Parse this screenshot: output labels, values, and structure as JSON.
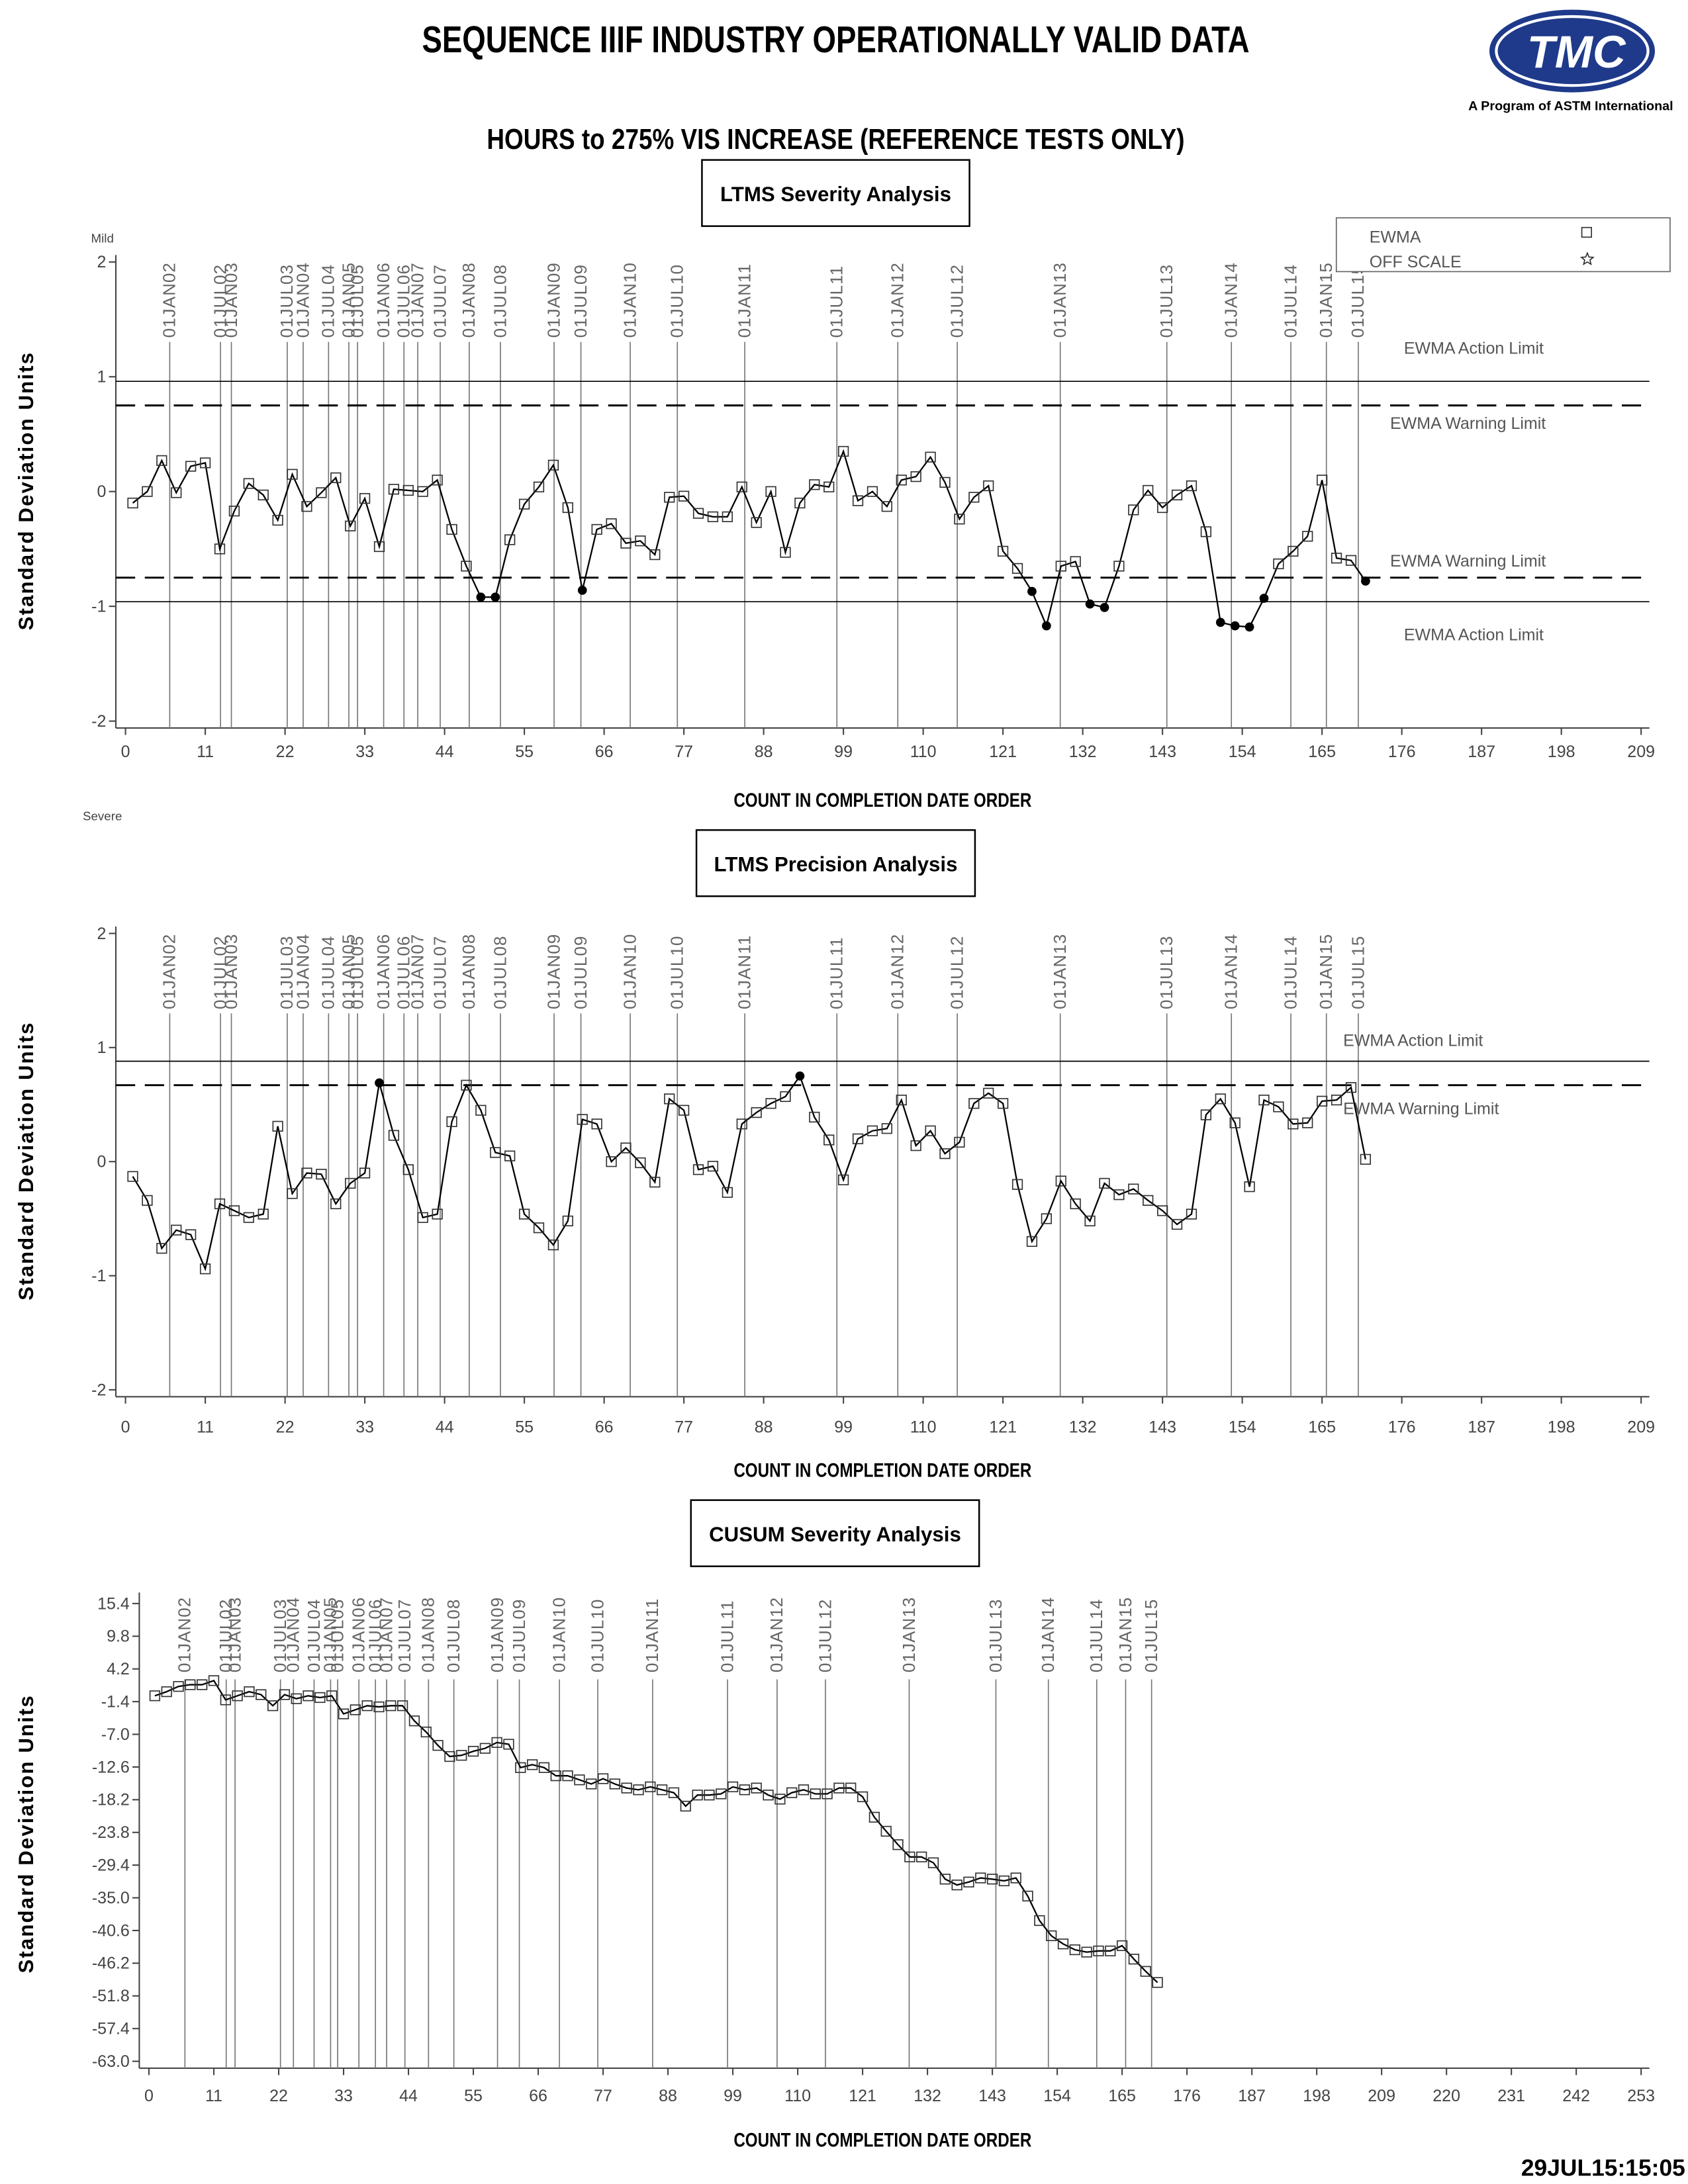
{
  "header": {
    "title": "SEQUENCE IIIF INDUSTRY OPERATIONALLY VALID DATA",
    "subtitle": "HOURS to 275% VIS INCREASE (REFERENCE TESTS ONLY)",
    "logo_text": "TMC",
    "logo_caption": "A Program of ASTM International",
    "timestamp": "29JUL15:15:05"
  },
  "date_markers": {
    "labels": [
      "01JAN02",
      "01JUL02",
      "01JAN03",
      "01JUL03",
      "01JAN04",
      "01JUL04",
      "01JAN05",
      "01JUL05",
      "01JAN06",
      "01JUL06",
      "01JAN07",
      "01JUL07",
      "01JAN08",
      "01JUL08",
      "01JAN09",
      "01JUL09",
      "01JAN10",
      "01JUL10",
      "01JAN11",
      "01JUL11",
      "01JAN12",
      "01JUL12",
      "01JAN13",
      "01JUL13",
      "01JAN14",
      "01JUL14",
      "01JAN15",
      "01JUL15"
    ],
    "x": [
      6.1,
      13.1,
      14.6,
      22.3,
      24.5,
      28,
      30.8,
      32,
      35.6,
      38.4,
      40.3,
      43.4,
      47.4,
      51.7,
      59.1,
      62.8,
      69.6,
      76.1,
      85.4,
      98.1,
      106.5,
      114.7,
      128.9,
      143.6,
      152.5,
      160.7,
      165.6,
      170
    ]
  },
  "chart_data": [
    {
      "type": "line",
      "title": "LTMS Severity Analysis",
      "x_label": "COUNT IN COMPLETION DATE ORDER",
      "y_label": "Standard Deviation Units",
      "annotations": [
        "Mild",
        "Severe"
      ],
      "legend": {
        "position": "upper right",
        "off_scale_label": "OFF SCALE"
      },
      "x": [
        1,
        3,
        5,
        7,
        9,
        11,
        13,
        15,
        17,
        19,
        21,
        23,
        25,
        27,
        29,
        31,
        33,
        35,
        37,
        39,
        41,
        43,
        45,
        47,
        49,
        51,
        53,
        55,
        57,
        59,
        61,
        63,
        65,
        67,
        69,
        71,
        73,
        75,
        77,
        79,
        81,
        83,
        85,
        87,
        89,
        91,
        93,
        95,
        97,
        99,
        101,
        103,
        105,
        107,
        109,
        111,
        113,
        115,
        117,
        119,
        121,
        123,
        125,
        127,
        129,
        131,
        133,
        135,
        137,
        139,
        141,
        143,
        145,
        147,
        149,
        151,
        153,
        155,
        157,
        159,
        161,
        163,
        165,
        167,
        169,
        171
      ],
      "series": [
        {
          "name": "EWMA",
          "color": "#000000",
          "values": [
            -0.1,
            0.0,
            0.27,
            -0.01,
            0.22,
            0.25,
            -0.5,
            -0.17,
            0.07,
            -0.03,
            -0.25,
            0.15,
            -0.13,
            -0.01,
            0.12,
            -0.3,
            -0.06,
            -0.48,
            0.02,
            0.01,
            0,
            0.1,
            -0.33,
            -0.65,
            -0.92,
            -0.92,
            -0.42,
            -0.11,
            0.04,
            0.23,
            -0.14,
            -0.86,
            -0.33,
            -0.28,
            -0.45,
            -0.43,
            -0.55,
            -0.05,
            -0.04,
            -0.19,
            -0.22,
            -0.22,
            0.04,
            -0.27,
            0,
            -0.53,
            -0.1,
            0.06,
            0.04,
            0.35,
            -0.08,
            0,
            -0.13,
            0.1,
            0.13,
            0.3,
            0.08,
            -0.24,
            -0.05,
            0.05,
            -0.52,
            -0.67,
            -0.87,
            -1.17,
            -0.65,
            -0.61,
            -0.98,
            -1.01,
            -0.65,
            -0.16,
            0.01,
            -0.14,
            -0.03,
            0.05,
            -0.35,
            -1.14,
            -1.17,
            -1.18,
            -0.93,
            -0.63,
            -0.52,
            -0.39,
            0.1,
            -0.58,
            -0.6,
            -0.78
          ]
        }
      ],
      "limits": [
        {
          "name": "EWMA Action Limit",
          "value": 0.96,
          "style": "solid"
        },
        {
          "name": "EWMA Warning Limit",
          "value": 0.75,
          "style": "dashed"
        },
        {
          "name": "EWMA Warning Limit",
          "value": -0.75,
          "style": "dashed"
        },
        {
          "name": "EWMA Action Limit",
          "value": -0.96,
          "style": "solid"
        }
      ],
      "xlim": [
        0,
        209
      ],
      "xticks": [
        0,
        11,
        22,
        33,
        44,
        55,
        66,
        77,
        88,
        99,
        110,
        121,
        132,
        143,
        154,
        165,
        176,
        187,
        198,
        209
      ],
      "ylim": [
        -2,
        2
      ],
      "yticks": [
        2,
        1,
        0,
        -1,
        -2
      ]
    },
    {
      "type": "line",
      "title": "LTMS Precision Analysis",
      "x_label": "COUNT IN COMPLETION DATE ORDER",
      "y_label": "Standard Deviation Units",
      "x": [
        1,
        3,
        5,
        7,
        9,
        11,
        13,
        15,
        17,
        19,
        21,
        23,
        25,
        27,
        29,
        31,
        33,
        35,
        37,
        39,
        41,
        43,
        45,
        47,
        49,
        51,
        53,
        55,
        57,
        59,
        61,
        63,
        65,
        67,
        69,
        71,
        73,
        75,
        77,
        79,
        81,
        83,
        85,
        87,
        89,
        91,
        93,
        95,
        97,
        99,
        101,
        103,
        105,
        107,
        109,
        111,
        113,
        115,
        117,
        119,
        121,
        123,
        125,
        127,
        129,
        131,
        133,
        135,
        137,
        139,
        141,
        143,
        145,
        147,
        149,
        151,
        153,
        155,
        157,
        159,
        161,
        163,
        165,
        167,
        169,
        171
      ],
      "series": [
        {
          "color": "#000000",
          "values": [
            -0.13,
            -0.34,
            -0.76,
            -0.6,
            -0.64,
            -0.94,
            -0.37,
            -0.43,
            -0.49,
            -0.46,
            0.31,
            -0.28,
            -0.1,
            -0.11,
            -0.37,
            -0.19,
            -0.1,
            0.69,
            0.23,
            -0.07,
            -0.49,
            -0.46,
            0.35,
            0.67,
            0.45,
            0.08,
            0.05,
            -0.46,
            -0.58,
            -0.73,
            -0.52,
            0.37,
            0.33,
            0,
            0.12,
            -0.01,
            -0.18,
            0.55,
            0.45,
            -0.07,
            -0.04,
            -0.27,
            0.33,
            0.43,
            0.51,
            0.57,
            0.75,
            0.39,
            0.19,
            -0.16,
            0.2,
            0.27,
            0.29,
            0.54,
            0.14,
            0.27,
            0.07,
            0.17,
            0.51,
            0.6,
            0.51,
            -0.2,
            -0.7,
            -0.5,
            -0.17,
            -0.37,
            -0.52,
            -0.19,
            -0.29,
            -0.24,
            -0.34,
            -0.43,
            -0.55,
            -0.46,
            0.41,
            0.55,
            0.34,
            -0.22,
            0.54,
            0.48,
            0.33,
            0.34,
            0.53,
            0.54,
            0.65,
            0.02
          ]
        }
      ],
      "limits": [
        {
          "name": "EWMA Action Limit",
          "value": 0.88,
          "style": "solid"
        },
        {
          "name": "EWMA Warning Limit",
          "value": 0.67,
          "style": "dashed"
        }
      ],
      "xlim": [
        0,
        209
      ],
      "xticks": [
        0,
        11,
        22,
        33,
        44,
        55,
        66,
        77,
        88,
        99,
        110,
        121,
        132,
        143,
        154,
        165,
        176,
        187,
        198,
        209
      ],
      "ylim": [
        -2,
        2
      ],
      "yticks": [
        2,
        1,
        0,
        -1,
        -2
      ]
    },
    {
      "type": "line",
      "title": "CUSUM Severity Analysis",
      "x_label": "COUNT IN COMPLETION DATE ORDER",
      "y_label": "Standard Deviation Units",
      "x": [
        1,
        3,
        5,
        7,
        9,
        11,
        13,
        15,
        17,
        19,
        21,
        23,
        25,
        27,
        29,
        31,
        33,
        35,
        37,
        39,
        41,
        43,
        45,
        47,
        49,
        51,
        53,
        55,
        57,
        59,
        61,
        63,
        65,
        67,
        69,
        71,
        73,
        75,
        77,
        79,
        81,
        83,
        85,
        87,
        89,
        91,
        93,
        95,
        97,
        99,
        101,
        103,
        105,
        107,
        109,
        111,
        113,
        115,
        117,
        119,
        121,
        123,
        125,
        127,
        129,
        131,
        133,
        135,
        137,
        139,
        141,
        143,
        145,
        147,
        149,
        151,
        153,
        155,
        157,
        159,
        161,
        163,
        165,
        167,
        169,
        171
      ],
      "series": [
        {
          "color": "#000000",
          "values": [
            -0.4,
            0.3,
            1.2,
            1.5,
            1.5,
            2.2,
            -1.1,
            -0.4,
            0.3,
            -0.2,
            -2.1,
            -0.2,
            -0.9,
            -0.4,
            -0.7,
            -0.4,
            -3.5,
            -2.8,
            -2.1,
            -2.3,
            -2.1,
            -2.1,
            -4.7,
            -6.6,
            -8.9,
            -10.8,
            -10.6,
            -9.9,
            -9.4,
            -8.4,
            -8.7,
            -12.7,
            -12.2,
            -12.7,
            -14.1,
            -14.1,
            -14.8,
            -15.5,
            -14.6,
            -15.5,
            -16.2,
            -16.5,
            -16.0,
            -16.5,
            -17.0,
            -19.3,
            -17.4,
            -17.4,
            -17.2,
            -16.0,
            -16.5,
            -16.2,
            -17.4,
            -18.1,
            -17.0,
            -16.5,
            -17.2,
            -17.2,
            -16.2,
            -16.2,
            -17.7,
            -21.2,
            -23.6,
            -25.9,
            -28.0,
            -28.0,
            -29.0,
            -31.8,
            -32.8,
            -32.3,
            -31.6,
            -31.8,
            -32.1,
            -31.6,
            -34.7,
            -38.9,
            -41.5,
            -42.9,
            -43.9,
            -44.3,
            -44.1,
            -44.1,
            -43.2,
            -45.5,
            -47.6,
            -49.5
          ]
        }
      ],
      "xlim": [
        0,
        253
      ],
      "xticks": [
        0,
        11,
        22,
        33,
        44,
        55,
        66,
        77,
        88,
        99,
        110,
        121,
        132,
        143,
        154,
        165,
        176,
        187,
        198,
        209,
        220,
        231,
        242,
        253
      ],
      "ylim": [
        -63,
        15.4
      ],
      "yticks": [
        15.4,
        9.8,
        4.2,
        -1.4,
        {
          "value": -7,
          "label": "-7.0"
        },
        -12.6,
        -18.2,
        -23.8,
        -29.4,
        {
          "value": -35,
          "label": "-35.0"
        },
        -40.6,
        -46.2,
        -51.8,
        -57.4,
        {
          "value": -63,
          "label": "-63.0"
        }
      ]
    }
  ]
}
